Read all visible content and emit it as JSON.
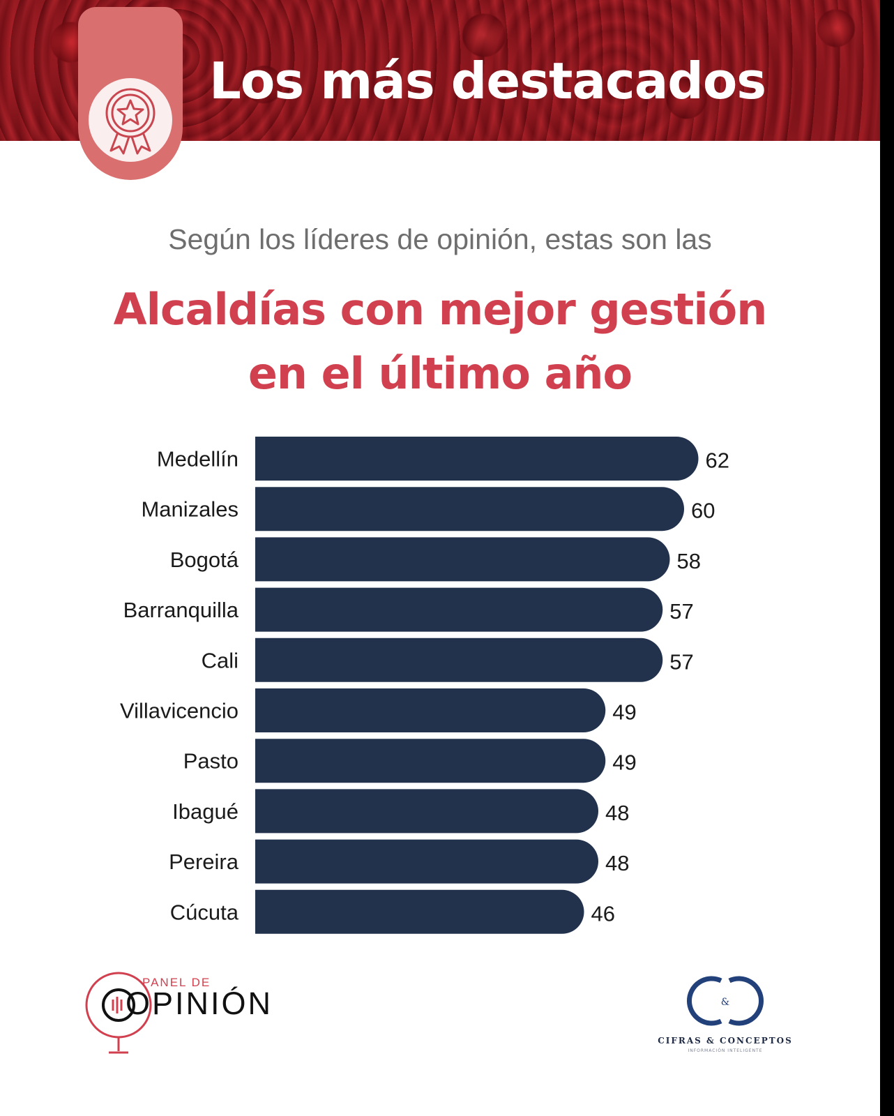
{
  "header": {
    "title": "Los más destacados"
  },
  "subtitle": "Según los líderes de opinión, estas son las",
  "title_lines": [
    "Alcaldías con mejor gestión",
    "en el último año"
  ],
  "colors": {
    "bar": "#22324c",
    "accent": "#d1404f",
    "badge": "#d9706f"
  },
  "chart_data": {
    "type": "bar",
    "orientation": "horizontal",
    "categories": [
      "Medellín",
      "Manizales",
      "Bogotá",
      "Barranquilla",
      "Cali",
      "Villavicencio",
      "Pasto",
      "Ibagué",
      "Pereira",
      "Cúcuta"
    ],
    "values": [
      62,
      60,
      58,
      57,
      57,
      49,
      49,
      48,
      48,
      46
    ],
    "data_labels": [
      "62",
      "60",
      "58",
      "57",
      "57",
      "49",
      "49",
      "48",
      "48",
      "46"
    ],
    "title": "",
    "xlabel": "",
    "ylabel": "",
    "grid": false
  },
  "logos": {
    "left_small": "PANEL DE",
    "left_big": "OPINIÓN",
    "right_name": "CIFRAS & CONCEPTOS",
    "right_tagline": "INFORMACIÓN INTELIGENTE",
    "right_monogram": "&"
  },
  "icons": [
    "award-ribbon-icon",
    "microphone-icon"
  ]
}
